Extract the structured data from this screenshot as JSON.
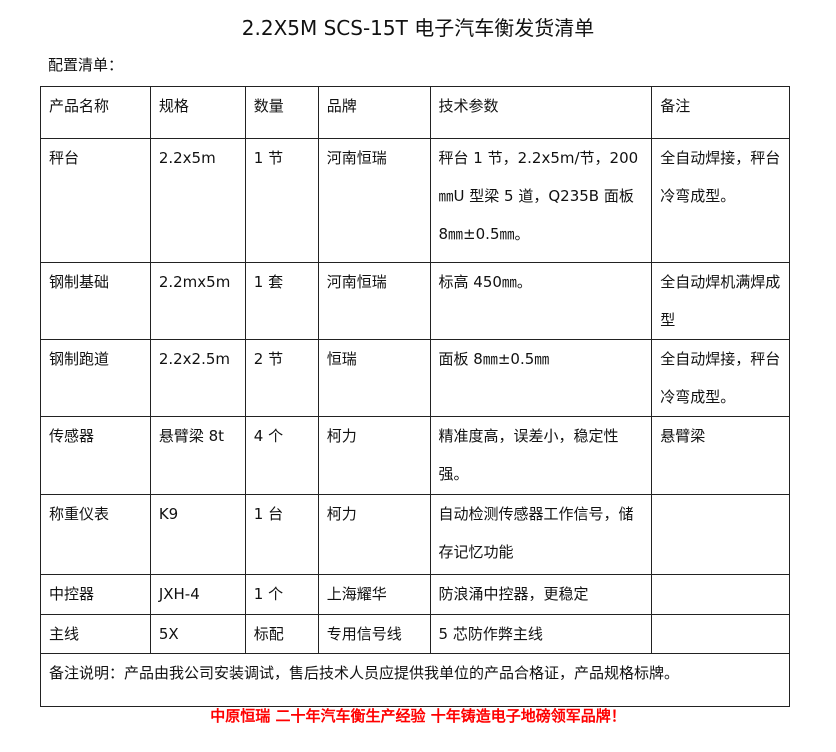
{
  "title": "2.2X5M SCS-15T 电子汽车衡发货清单",
  "subtitle": "配置清单：",
  "headers": [
    "产品名称",
    "规格",
    "数量",
    "品牌",
    "技术参数",
    "备注"
  ],
  "rows": [
    [
      "秤台",
      "2.2x5m",
      "1 节",
      "河南恒瑞",
      "秤台 1 节，2.2x5m/节，200㎜U 型梁 5 道，Q235B 面板 8㎜±0.5㎜。",
      "全自动焊接，秤台冷弯成型。"
    ],
    [
      "钢制基础",
      "2.2mx5m",
      "1 套",
      "河南恒瑞",
      "标高 450㎜。",
      "全自动焊机满焊成型"
    ],
    [
      "钢制跑道",
      "2.2x2.5m",
      "2 节",
      "恒瑞",
      "面板 8㎜±0.5㎜",
      "全自动焊接，秤台冷弯成型。"
    ],
    [
      "传感器",
      "悬臂梁 8t",
      "4 个",
      "柯力",
      "精准度高，误差小，稳定性强。",
      "悬臂梁"
    ],
    [
      "称重仪表",
      "K9",
      "1 台",
      "柯力",
      "自动检测传感器工作信号，储存记忆功能",
      ""
    ],
    [
      "中控器",
      "JXH-4",
      "1 个",
      "上海耀华",
      "防浪涌中控器，更稳定",
      ""
    ],
    [
      "主线",
      "5X",
      "标配",
      "专用信号线",
      "5 芯防作弊主线",
      ""
    ]
  ],
  "remark": "备注说明：产品由我公司安装调试，售后技术人员应提供我单位的产品合格证，产品规格标牌。",
  "footer": "中原恒瑞 二十年汽车衡生产经验 十年铸造电子地磅领军品牌！",
  "colors": {
    "footer": "#ff0000"
  }
}
